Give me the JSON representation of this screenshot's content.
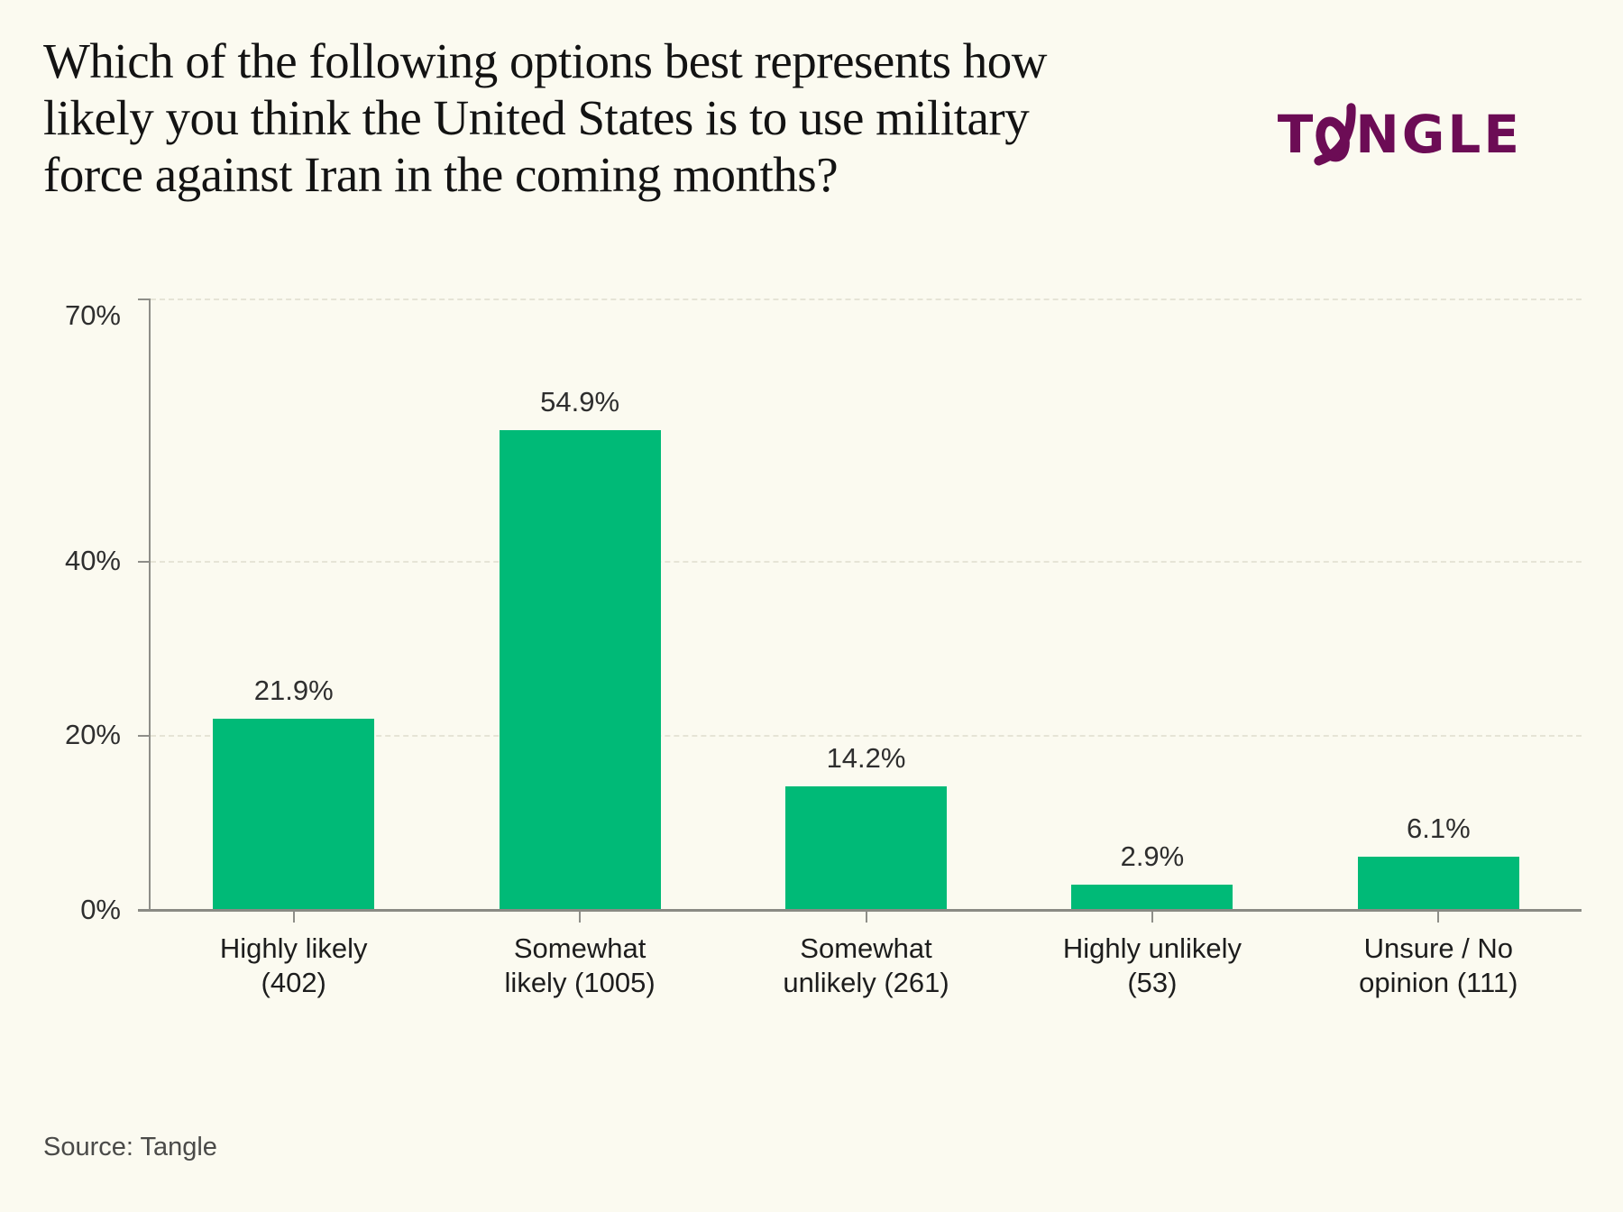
{
  "header": {
    "title_lines": [
      "Which of the following options best represents how",
      "likely you think the United States is to use military",
      "force against Iran in the coming months?"
    ],
    "logo": {
      "name": "Tangle",
      "prefix": "T",
      "suffix": "NGLE",
      "color": "#6c0c55"
    }
  },
  "chart_data": {
    "type": "bar",
    "title": "Which of the following options best represents how likely you think the United States is to use military force against Iran in the coming months?",
    "categories": [
      "Highly likely (402)",
      "Somewhat likely (1005)",
      "Somewhat unlikely (261)",
      "Highly unlikely (53)",
      "Unsure / No opinion (111)"
    ],
    "category_lines": [
      [
        "Highly likely",
        "(402)"
      ],
      [
        "Somewhat",
        "likely (1005)"
      ],
      [
        "Somewhat",
        "unlikely (261)"
      ],
      [
        "Highly unlikely",
        "(53)"
      ],
      [
        "Unsure / No",
        "opinion (111)"
      ]
    ],
    "counts": [
      402,
      1005,
      261,
      53,
      111
    ],
    "values": [
      21.9,
      54.9,
      14.2,
      2.9,
      6.1
    ],
    "value_labels": [
      "21.9%",
      "54.9%",
      "14.2%",
      "2.9%",
      "6.1%"
    ],
    "y_ticks": [
      {
        "value": 0,
        "label": "0%"
      },
      {
        "value": 20,
        "label": "20%"
      },
      {
        "value": 40,
        "label": "40%"
      },
      {
        "value": 70,
        "label": "70%"
      }
    ],
    "ylim": [
      0,
      70
    ],
    "xlabel": "",
    "ylabel": "",
    "grid": "horizontal dashed at 20, 40, 70",
    "legend": "none",
    "bar_color": "#00ba77",
    "background_color": "#fbfaf0"
  },
  "footer": {
    "source": "Source: Tangle"
  }
}
